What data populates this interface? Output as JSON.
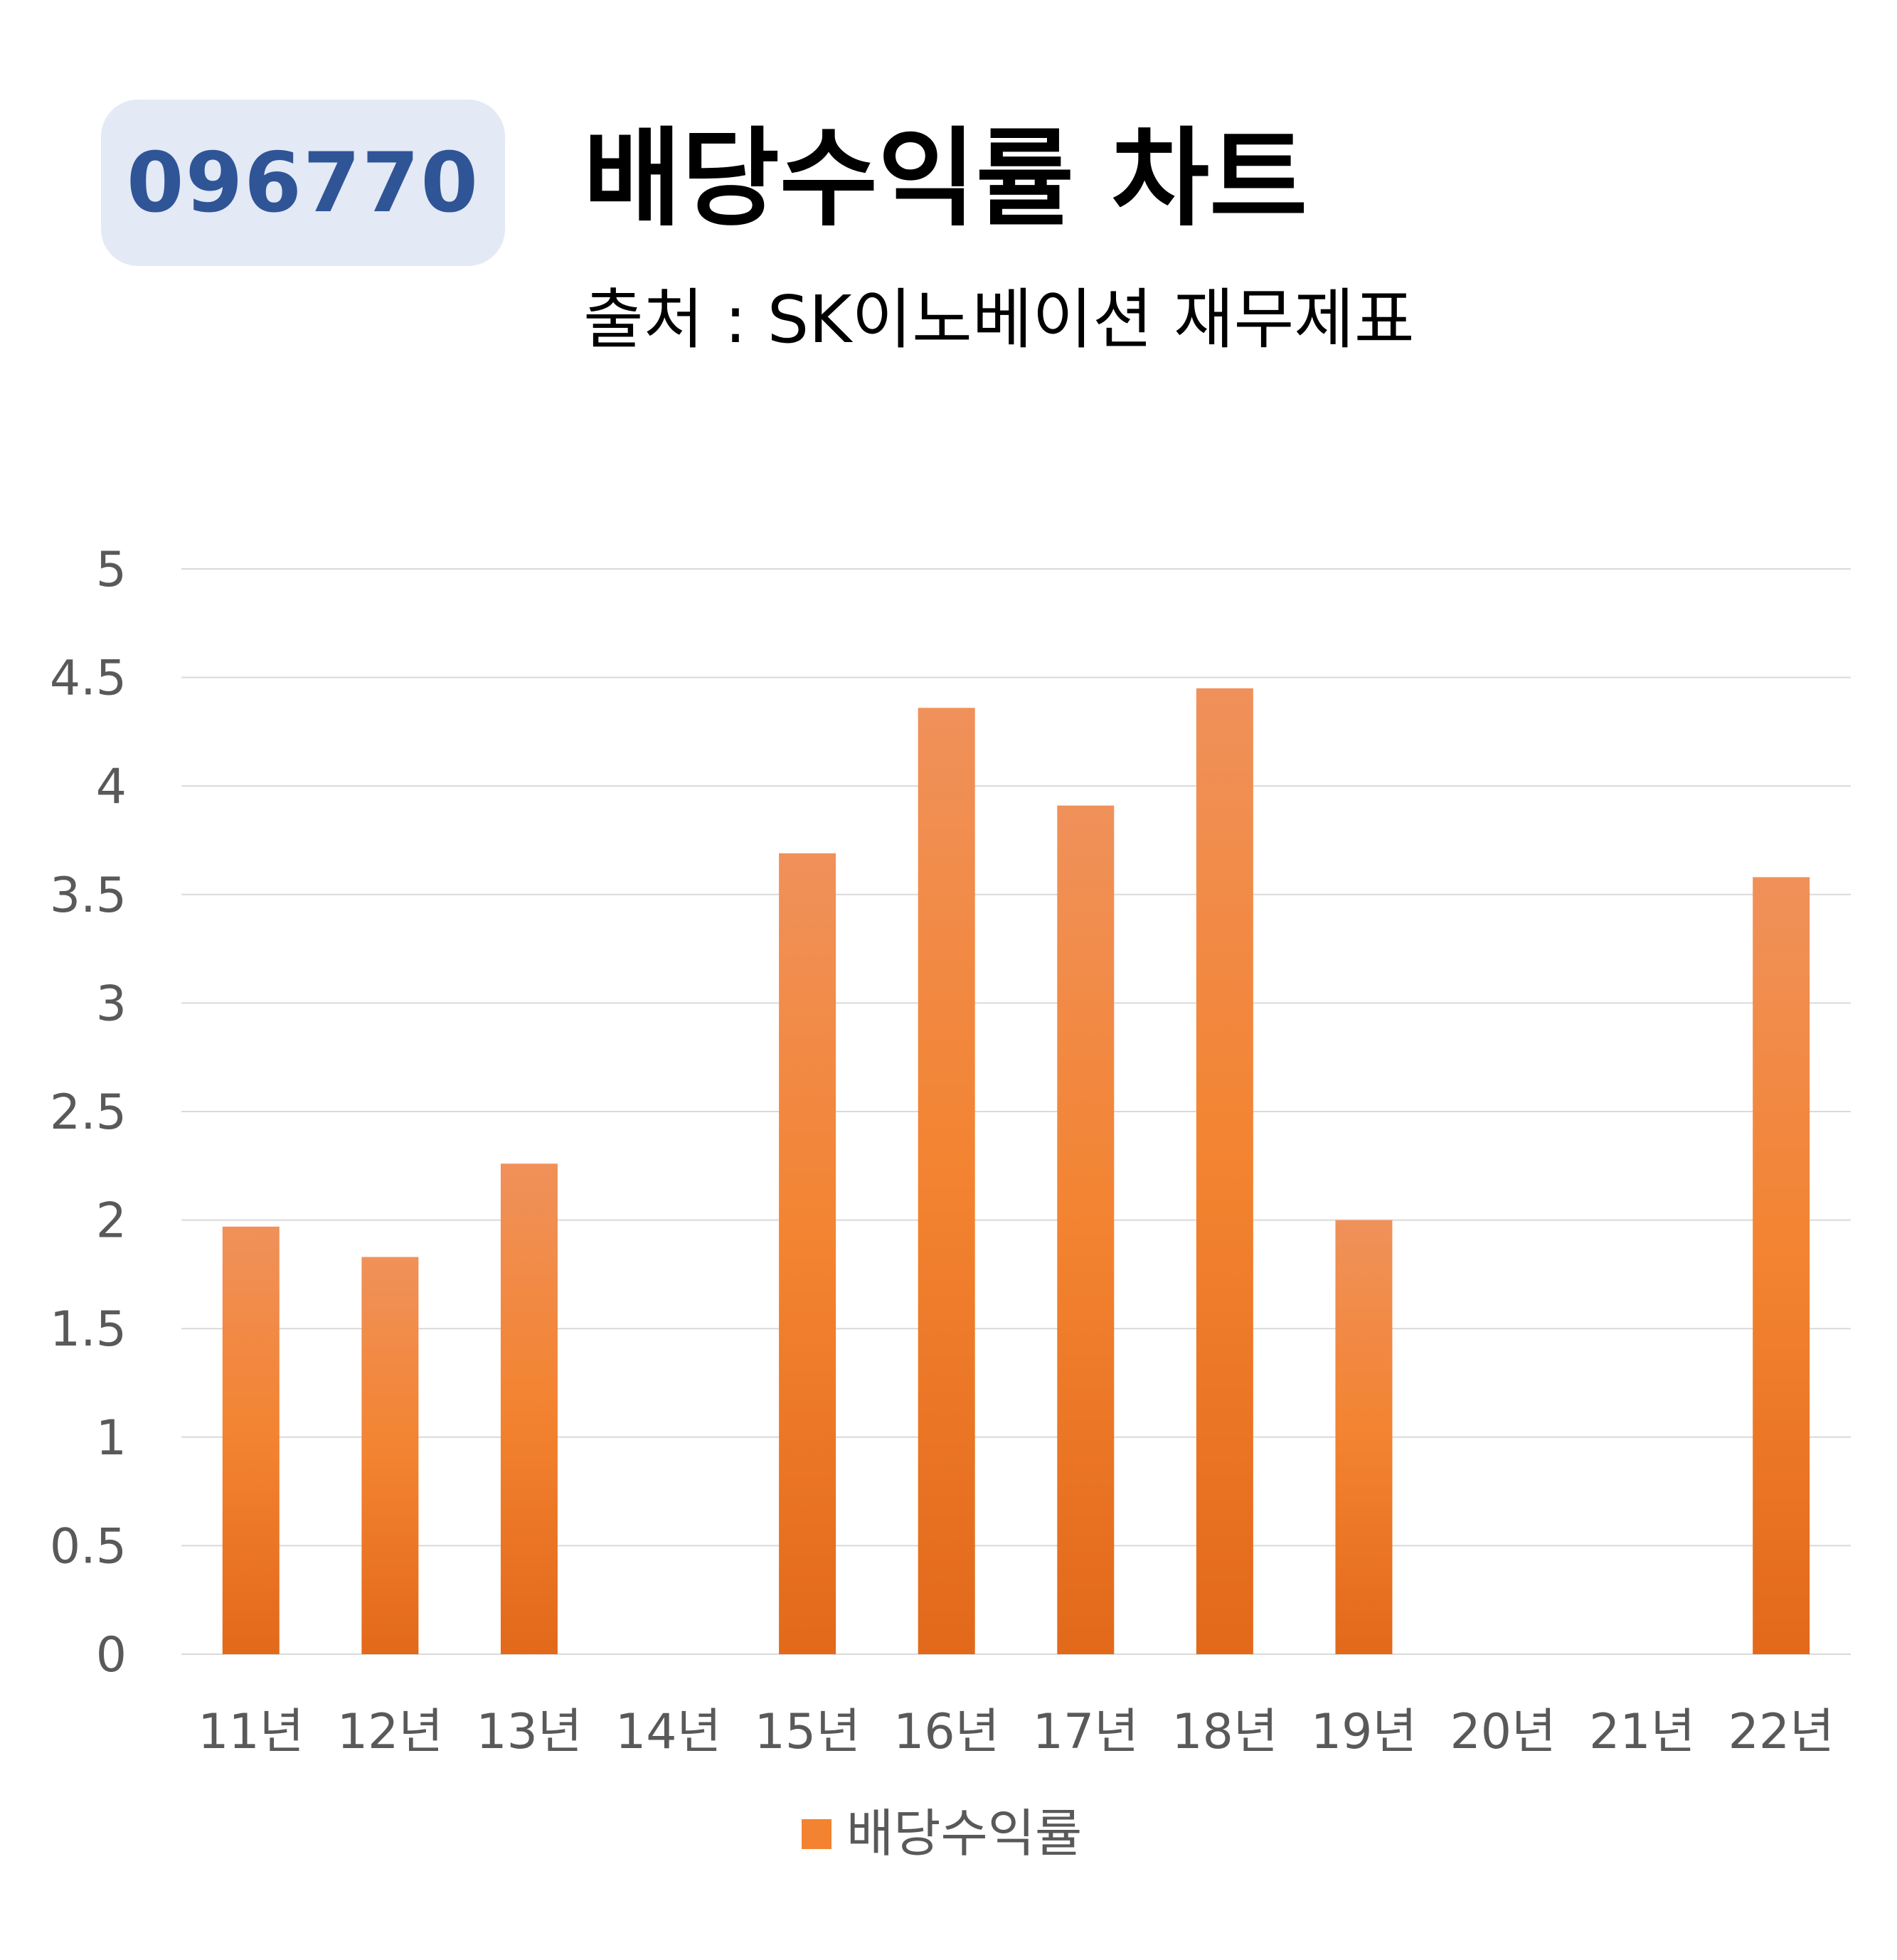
{
  "header": {
    "ticker": "096770",
    "title": "배당수익률 차트",
    "subtitle": "출처 : SK이노베이션 재무제표"
  },
  "colors": {
    "bar_top": "#f0915a",
    "bar_mid": "#f38330",
    "bar_bottom": "#e2691a",
    "grid": "#d9d9d9",
    "badge_bg": "#e3e9f5",
    "badge_text": "#2f5597"
  },
  "chart_data": {
    "type": "bar",
    "categories": [
      "11년",
      "12년",
      "13년",
      "14년",
      "15년",
      "16년",
      "17년",
      "18년",
      "19년",
      "20년",
      "21년",
      "22년"
    ],
    "series": [
      {
        "name": "배당수익률",
        "values": [
          1.97,
          1.83,
          2.26,
          0,
          3.69,
          4.36,
          3.91,
          4.45,
          2.0,
          0,
          0,
          3.58
        ]
      }
    ],
    "ylim": [
      0,
      5
    ],
    "yticks": [
      "0",
      "0.5",
      "1",
      "1.5",
      "2",
      "2.5",
      "3",
      "3.5",
      "4",
      "4.5",
      "5"
    ],
    "grid": true,
    "legend": "bottom"
  }
}
